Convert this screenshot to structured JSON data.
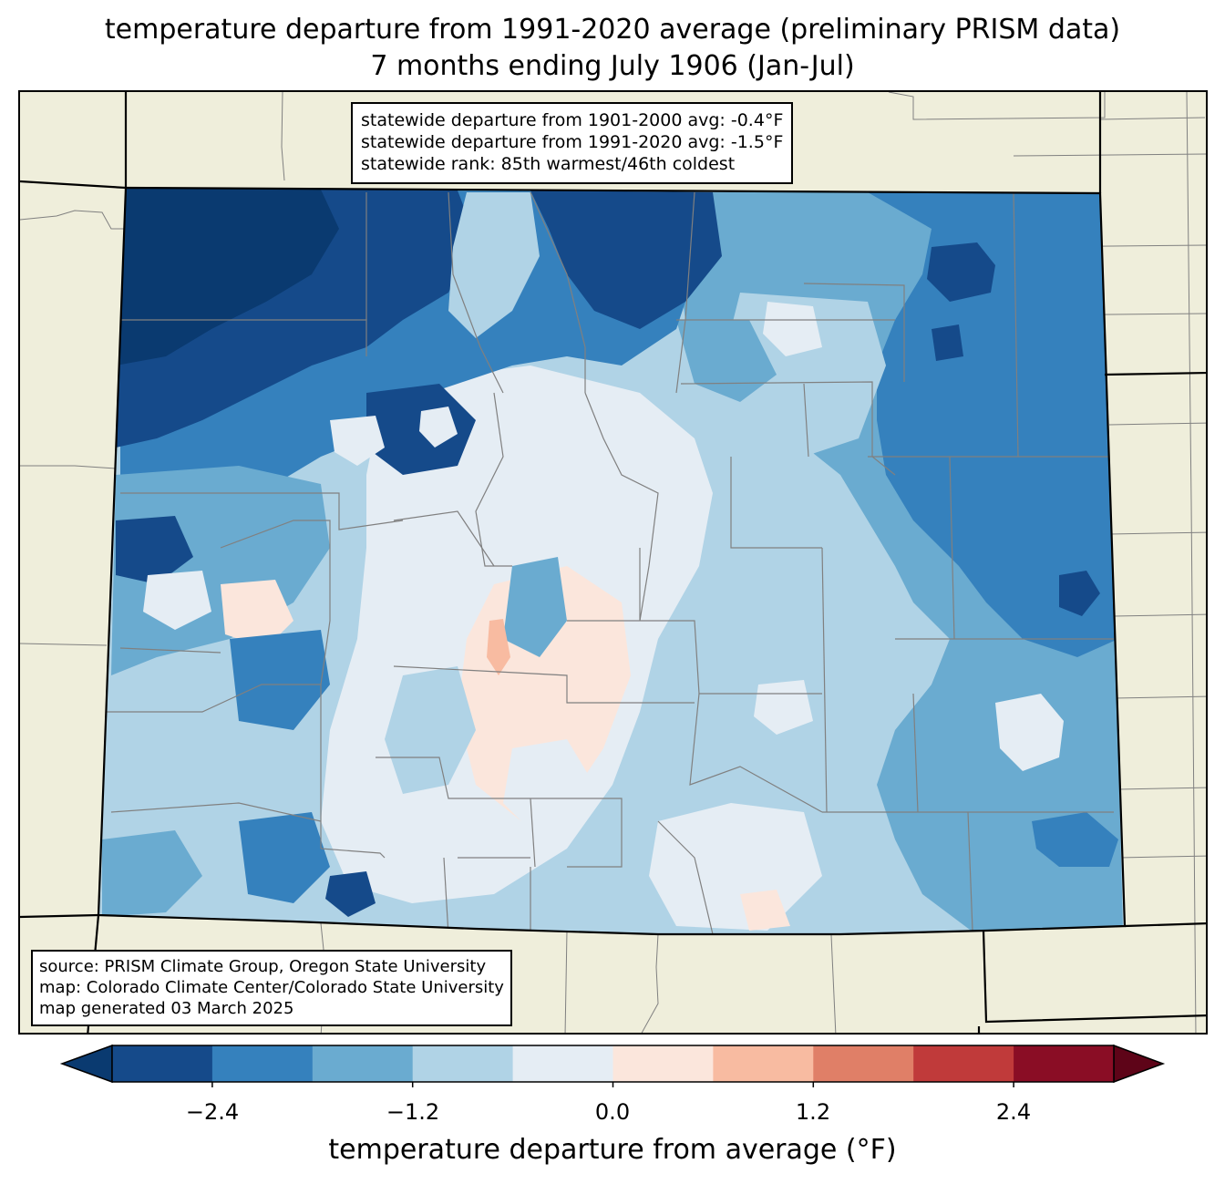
{
  "title": {
    "line1": "temperature departure from 1991-2020 average (preliminary PRISM data)",
    "line2": "7 months ending July 1906 (Jan-Jul)"
  },
  "stats": {
    "line1": "statewide departure from 1901-2000 avg: -0.4°F",
    "line2": "statewide departure from 1991-2020 avg: -1.5°F",
    "line3": "statewide rank: 85th warmest/46th coldest"
  },
  "source": {
    "line1": "source: PRISM Climate Group, Oregon State University",
    "line2": "map: Colorado Climate Center/Colorado State University",
    "line3": "map generated 03 March 2025"
  },
  "colorbar": {
    "label": "temperature departure from average (°F)",
    "ticks": [
      "−2.4",
      "−1.2",
      "0.0",
      "1.2",
      "2.4"
    ],
    "tick_values": [
      -2.4,
      -1.2,
      0.0,
      1.2,
      2.4
    ],
    "levels": [
      -3.0,
      -2.4,
      -1.8,
      -1.2,
      -0.6,
      0.0,
      0.6,
      1.2,
      1.8,
      2.4,
      3.0
    ],
    "colors": [
      "#0a3a70",
      "#154a8a",
      "#3581bd",
      "#6aabd0",
      "#b0d3e6",
      "#e5edf4",
      "#fbe6dc",
      "#f8bba1",
      "#e07f67",
      "#c03a3a",
      "#8a0d25",
      "#5e0418"
    ],
    "extend": "both"
  },
  "map": {
    "land_color": "#efeedb",
    "state": "Colorado"
  }
}
